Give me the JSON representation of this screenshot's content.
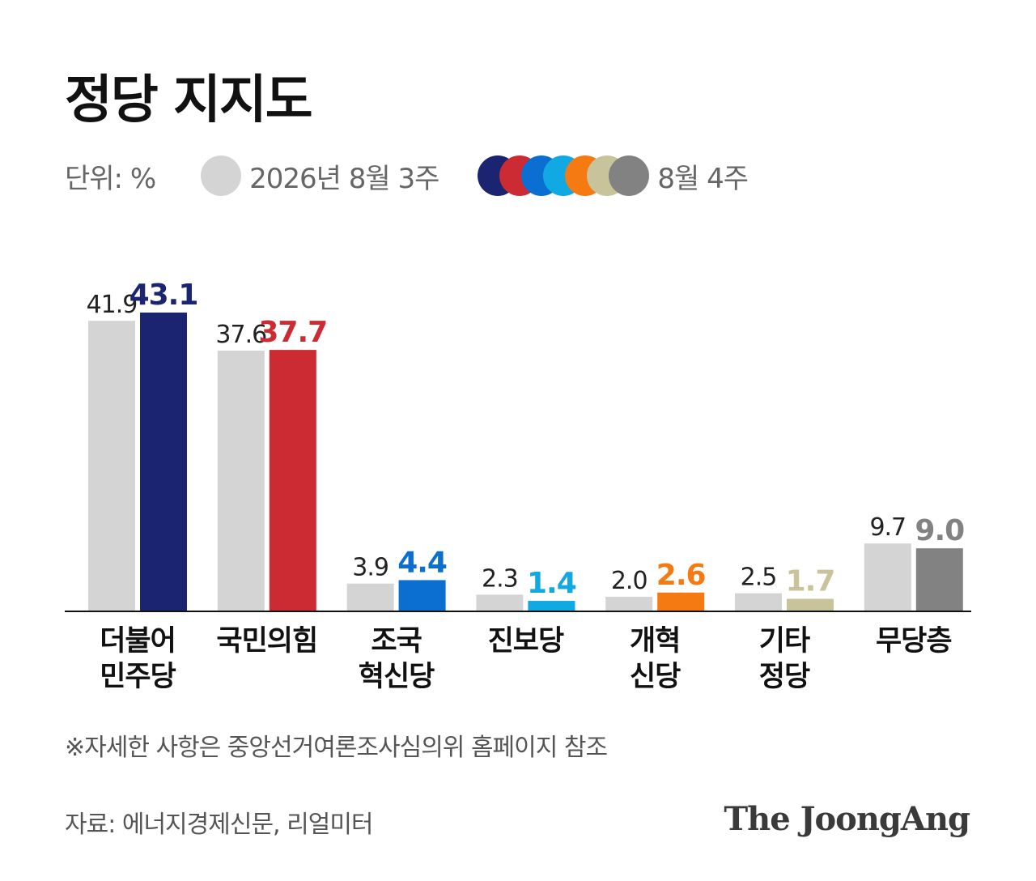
{
  "title": "정당 지지도",
  "legend": {
    "unit": "단위: %",
    "previous_label": "2026년 8월 3주",
    "previous_color": "#d4d4d4",
    "current_label": "8월 4주",
    "current_colors": [
      "#1b2470",
      "#cc2b33",
      "#0a6fd0",
      "#11a9e3",
      "#f57a12",
      "#c8c39b",
      "#828282"
    ]
  },
  "chart_data": {
    "type": "bar",
    "categories": [
      [
        "더불어",
        "민주당"
      ],
      [
        "국민의힘"
      ],
      [
        "조국",
        "혁신당"
      ],
      [
        "진보당"
      ],
      [
        "개혁",
        "신당"
      ],
      [
        "기타",
        "정당"
      ],
      [
        "무당층"
      ]
    ],
    "series": [
      {
        "name": "2026년 8월 3주",
        "values": [
          41.9,
          37.6,
          3.9,
          2.3,
          2.0,
          2.5,
          9.7
        ],
        "color": "#d4d4d4",
        "label_color": "#222222"
      },
      {
        "name": "8월 4주",
        "values": [
          43.1,
          37.7,
          4.4,
          1.4,
          2.6,
          1.7,
          9.0
        ],
        "colors": [
          "#1b2470",
          "#cc2b33",
          "#0a6fd0",
          "#11a9e3",
          "#f57a12",
          "#c8c39b",
          "#828282"
        ]
      }
    ],
    "ylim": [
      0,
      43.1
    ]
  },
  "note": "※자세한 사항은 중앙선거여론조사심의위 홈페이지 참조",
  "source": "자료: 에너지경제신문, 리얼미터",
  "brand": "The JoongAng"
}
